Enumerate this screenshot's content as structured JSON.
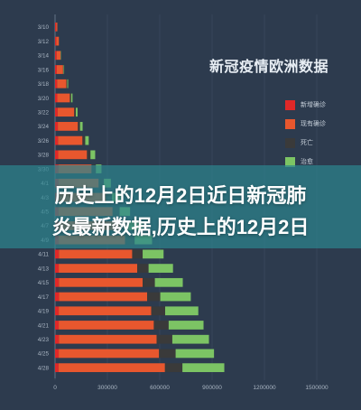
{
  "chart_data": {
    "type": "bar",
    "orientation": "horizontal",
    "stacked": true,
    "title": "新冠疫情欧洲数据",
    "categories": [
      "3/10",
      "3/12",
      "3/14",
      "3/16",
      "3/18",
      "3/20",
      "3/22",
      "3/24",
      "3/26",
      "3/28",
      "3/30",
      "4/1",
      "4/3",
      "4/5",
      "4/7",
      "4/9",
      "4/11",
      "4/13",
      "4/15",
      "4/17",
      "4/19",
      "4/21",
      "4/23",
      "4/25",
      "4/28"
    ],
    "series": [
      {
        "name": "新增确诊",
        "color": "#e02828",
        "values": [
          6000,
          7000,
          9000,
          10000,
          12000,
          13000,
          15000,
          16000,
          17000,
          18000,
          19000,
          20000,
          21000,
          20000,
          22000,
          21000,
          22000,
          21000,
          22000,
          23000,
          21000,
          21000,
          22000,
          21000,
          20000
        ]
      },
      {
        "name": "现有确诊",
        "color": "#e8572e",
        "values": [
          7000,
          15000,
          22000,
          36000,
          53000,
          72000,
          95000,
          115000,
          140000,
          165000,
          190000,
          230000,
          270000,
          310000,
          350000,
          380000,
          420000,
          450000,
          480000,
          505000,
          530000,
          545000,
          560000,
          575000,
          610000
        ]
      },
      {
        "name": "死亡",
        "color": "#3a3a3a",
        "values": [
          0,
          0,
          2000,
          3000,
          5000,
          7000,
          9000,
          12000,
          16000,
          20000,
          25000,
          30000,
          35000,
          40000,
          48000,
          55000,
          60000,
          65000,
          70000,
          75000,
          80000,
          85000,
          90000,
          95000,
          100000
        ]
      },
      {
        "name": "治愈",
        "color": "#7cc464",
        "values": [
          0,
          0,
          2000,
          3000,
          5000,
          8000,
          10000,
          15000,
          20000,
          27000,
          32000,
          40000,
          50000,
          60000,
          80000,
          100000,
          120000,
          140000,
          160000,
          175000,
          190000,
          200000,
          210000,
          220000,
          240000
        ]
      }
    ],
    "xticks": [
      "0",
      "300000",
      "600000",
      "900000",
      "1200000",
      "1500000"
    ],
    "xlim": [
      0,
      1500000
    ],
    "grid": true,
    "legend_position": "right"
  },
  "banner": {
    "line1": "历史上的12月2日近日新冠肺",
    "line2": "炎最新数据,历史上的12月2日"
  },
  "colors": {
    "background": "#2d3b4e",
    "axis": "#aab6c3",
    "banner": "#2c848e"
  }
}
